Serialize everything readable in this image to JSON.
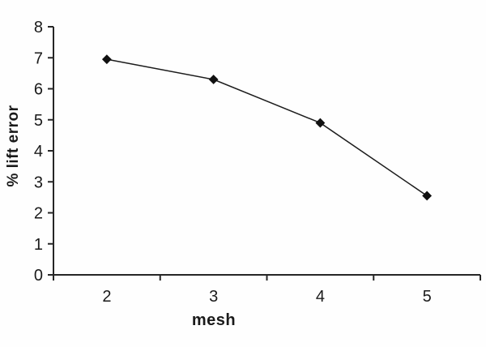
{
  "chart_data": {
    "type": "line",
    "categories": [
      "2",
      "3",
      "4",
      "5"
    ],
    "series": [
      {
        "name": "% lift error",
        "values": [
          6.95,
          6.3,
          4.9,
          2.55
        ]
      }
    ],
    "title": "",
    "xlabel": "mesh",
    "ylabel": "% lift error",
    "ylim": [
      0,
      8
    ],
    "yticks": [
      0,
      1,
      2,
      3,
      4,
      5,
      6,
      7,
      8
    ],
    "grid": false,
    "legend": "none",
    "marker": "diamond",
    "colors": {
      "line": "#1c1c1c",
      "marker": "#111111",
      "axis": "#262626",
      "text": "#1a1a1a",
      "background": "#fefefe"
    }
  }
}
